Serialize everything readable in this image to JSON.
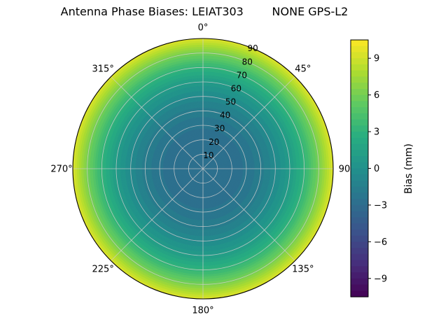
{
  "chart_data": {
    "type": "heatmap",
    "subtype": "polar-contour",
    "title": "Antenna Phase Biases: LEIAT303        NONE GPS-L2",
    "antenna": "LEIAT303",
    "radome": "NONE",
    "signal": "GPS-L2",
    "colorbar_label": "Bias (mm)",
    "colorbar_ticks": [
      9,
      6,
      3,
      0,
      -3,
      -6,
      -9
    ],
    "colorbar_tick_labels": [
      "9",
      "6",
      "3",
      "0",
      "−3",
      "−6",
      "−9"
    ],
    "value_range": [
      -10.5,
      10.5
    ],
    "contour_step": 0.5,
    "theta_tick_degrees": [
      0,
      45,
      90,
      135,
      180,
      225,
      270,
      315
    ],
    "theta_tick_labels": [
      "0°",
      "45°",
      "90",
      "135°",
      "180°",
      "225°",
      "270°",
      "315°"
    ],
    "r_tick_values": [
      10,
      20,
      30,
      40,
      50,
      60,
      70,
      80,
      90
    ],
    "r_tick_labels": [
      "10",
      "20",
      "30",
      "40",
      "50",
      "60",
      "70",
      "80",
      "90"
    ],
    "r_label_azimuth_deg": 22.5,
    "r_max": 90,
    "grid_on": true,
    "radial_profile": {
      "zenith_deg": [
        0,
        10,
        20,
        30,
        40,
        50,
        60,
        70,
        80,
        90
      ],
      "bias_mm": [
        -3.0,
        -2.95,
        -2.8,
        -2.4,
        -1.7,
        -0.6,
        1.0,
        3.2,
        6.1,
        9.6
      ]
    },
    "colormap": {
      "name": "viridis",
      "stops": [
        "#440154",
        "#472d7b",
        "#3b528b",
        "#2c728e",
        "#21918c",
        "#28ae80",
        "#5ec962",
        "#addc30",
        "#fde725"
      ]
    },
    "grid_color": "#cccccc",
    "outline_color": "#000000",
    "background_color": "#ffffff"
  }
}
